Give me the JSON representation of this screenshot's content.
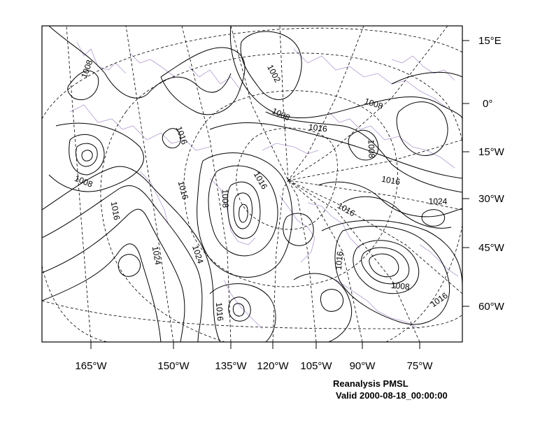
{
  "map": {
    "title": "Reanalysis PMSL",
    "valid": "Valid 2000-08-18_00:00:00",
    "colors": {
      "contour": "#000000",
      "coastline": "#b39cd0",
      "graticule": "#000000",
      "background": "#ffffff"
    },
    "longitude_labels": [
      "165°W",
      "150°W",
      "135°W",
      "120°W",
      "105°W",
      "90°W",
      "75°W"
    ],
    "latitude_labels": [
      "15°E",
      "0°",
      "15°W",
      "30°W",
      "45°W",
      "60°W"
    ],
    "contour_labels": [
      "1008",
      "1002",
      "1008",
      "1008",
      "1016",
      "1016",
      "1008",
      "1008",
      "1016",
      "1016",
      "1016",
      "1016",
      "1008",
      "1016",
      "1024",
      "1024",
      "1024",
      "1016",
      "1016",
      "1008",
      "1016",
      "1016"
    ]
  }
}
